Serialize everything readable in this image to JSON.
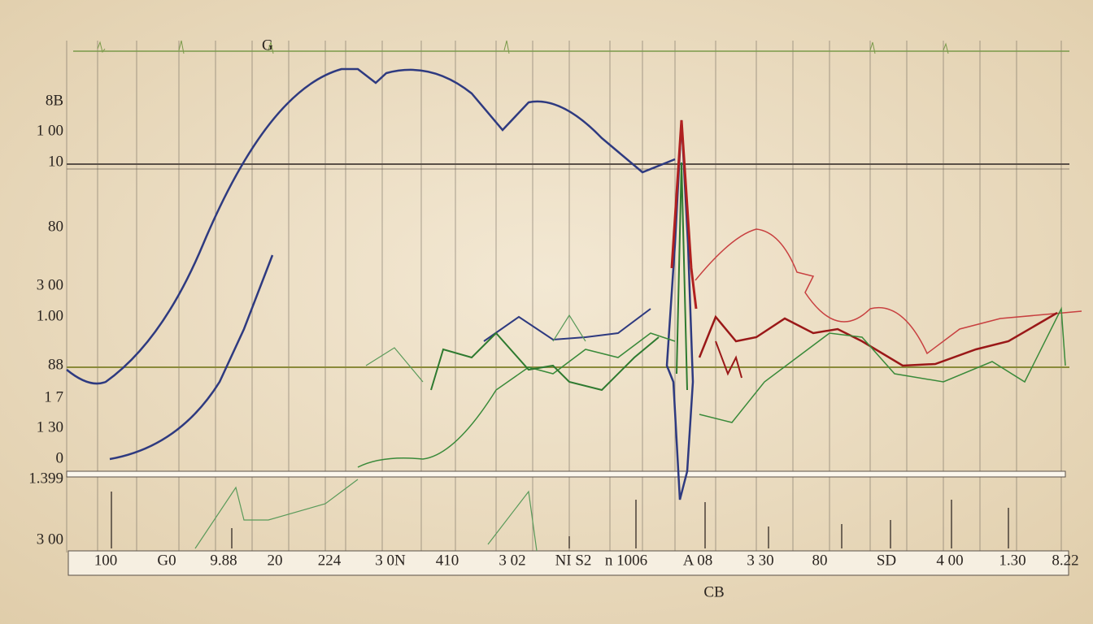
{
  "header": {
    "top_label": "G"
  },
  "axis_labels": {
    "y": [
      "8B",
      "1 00",
      "10",
      "80",
      "3 00",
      "1.00",
      "88",
      "1 7",
      "1 30",
      "0",
      "1.399",
      "3 00"
    ],
    "x": [
      "100",
      "G0",
      "9.88",
      "20",
      "224",
      "3 0N",
      "410",
      "3 02",
      "NI S2",
      "n 1006",
      "A 08",
      "3 30",
      "80",
      "SD",
      "4 00",
      "1.30",
      "8.22"
    ]
  },
  "caption": "CB"
}
